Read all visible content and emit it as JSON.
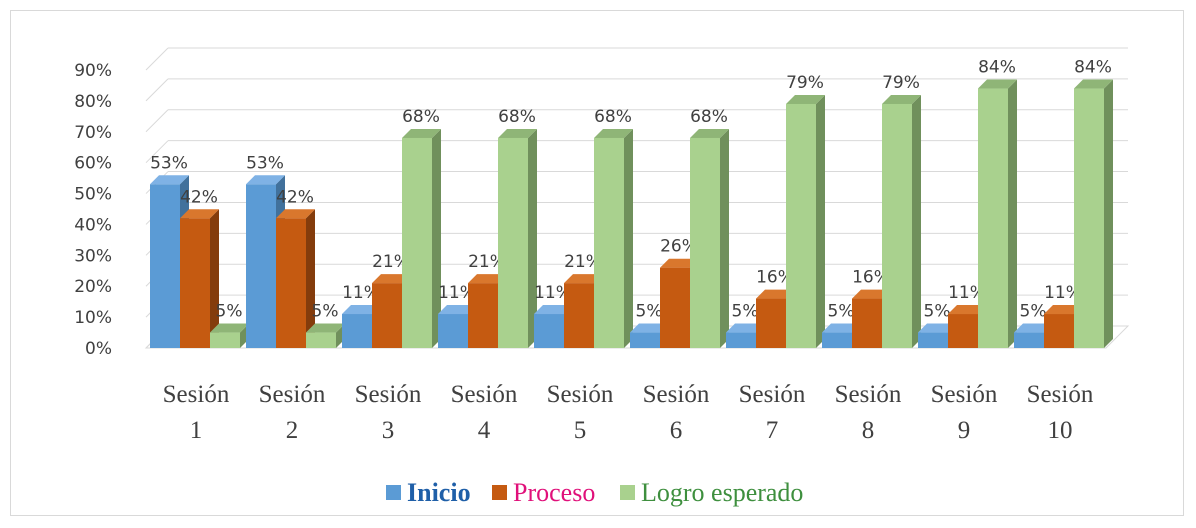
{
  "chart_data": {
    "type": "bar",
    "style": "3d-clustered-column",
    "categories": [
      {
        "line1": "Sesión",
        "line2": "1"
      },
      {
        "line1": "Sesión",
        "line2": "2"
      },
      {
        "line1": "Sesión",
        "line2": "3"
      },
      {
        "line1": "Sesión",
        "line2": "4"
      },
      {
        "line1": "Sesión",
        "line2": "5"
      },
      {
        "line1": "Sesión",
        "line2": "6"
      },
      {
        "line1": "Sesión",
        "line2": "7"
      },
      {
        "line1": "Sesión",
        "line2": "8"
      },
      {
        "line1": "Sesión",
        "line2": "9"
      },
      {
        "line1": "Sesión",
        "line2": "10"
      }
    ],
    "series": [
      {
        "name": "Inicio",
        "color": "#5b9bd5",
        "side": "#41719c",
        "top": "#7fb2e5",
        "legend_color": "#1f5fa8",
        "legend_bold": true,
        "values": [
          53,
          53,
          11,
          11,
          11,
          5,
          5,
          5,
          5,
          5
        ]
      },
      {
        "name": "Proceso",
        "color": "#c55a11",
        "side": "#843c0c",
        "top": "#d9772d",
        "legend_color": "#e0107a",
        "legend_bold": false,
        "values": [
          42,
          42,
          21,
          21,
          21,
          26,
          16,
          16,
          11,
          11
        ]
      },
      {
        "name": "Logro esperado",
        "color": "#a9d18e",
        "side": "#70905c",
        "top": "#8fb577",
        "legend_color": "#3e8f3e",
        "legend_bold": false,
        "values": [
          5,
          5,
          68,
          68,
          68,
          68,
          79,
          79,
          84,
          84
        ]
      }
    ],
    "yticks": [
      "0%",
      "10%",
      "20%",
      "30%",
      "40%",
      "50%",
      "60%",
      "70%",
      "80%",
      "90%"
    ],
    "ylim": [
      0,
      90
    ],
    "value_suffix": "%",
    "grid": true,
    "legend_position": "bottom"
  }
}
